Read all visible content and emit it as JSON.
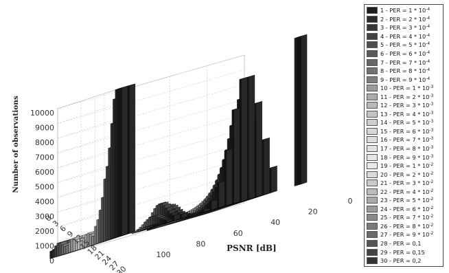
{
  "chart_data": {
    "type": "bar3d",
    "xlabel": "PSNR [dB]",
    "ylabel": "",
    "zlabel": "Number of observations",
    "x_ticks": [
      "0",
      "20",
      "40",
      "60",
      "80",
      "100"
    ],
    "y_ticks": [
      "0",
      "3",
      "6",
      "9",
      "12",
      "15",
      "18",
      "21",
      "24",
      "27",
      "30"
    ],
    "z_ticks": [
      "0",
      "1000",
      "2000",
      "3000",
      "4000",
      "5000",
      "6000",
      "7000",
      "8000",
      "9000",
      "10000"
    ],
    "xlim": [
      0,
      100
    ],
    "ylim": [
      0,
      30
    ],
    "zlim": [
      0,
      10000
    ],
    "grid": true,
    "legend_position": "right",
    "series": [
      {
        "name": "1 - PER = 1 * 10",
        "exp": "-4",
        "color": "#1e1e1e"
      },
      {
        "name": "2 - PER = 2 * 10",
        "exp": "-4",
        "color": "#2a2a2a"
      },
      {
        "name": "3 - PER = 3 * 10",
        "exp": "-4",
        "color": "#363636"
      },
      {
        "name": "4 - PER = 4 * 10",
        "exp": "-4",
        "color": "#424242"
      },
      {
        "name": "5 - PER = 5 * 10",
        "exp": "-4",
        "color": "#4e4e4e"
      },
      {
        "name": "6 - PER = 6 * 10",
        "exp": "-4",
        "color": "#5a5a5a"
      },
      {
        "name": "7 - PER = 7 * 10",
        "exp": "-4",
        "color": "#666666"
      },
      {
        "name": "8 - PER = 8 * 10",
        "exp": "-4",
        "color": "#727272"
      },
      {
        "name": "9 - PER = 9 * 10",
        "exp": "-4",
        "color": "#7e7e7e"
      },
      {
        "name": "10 - PER = 1 * 10",
        "exp": "-3",
        "color": "#9a9a9a"
      },
      {
        "name": "11 - PER = 2 * 10",
        "exp": "-3",
        "color": "#ababab"
      },
      {
        "name": "12 - PER = 3 * 10",
        "exp": "-3",
        "color": "#b8b8b8"
      },
      {
        "name": "13 - PER = 4 * 10",
        "exp": "-3",
        "color": "#c4c4c4"
      },
      {
        "name": "14 - PER = 5 * 10",
        "exp": "-3",
        "color": "#cecece"
      },
      {
        "name": "15 - PER = 6 * 10",
        "exp": "-3",
        "color": "#d6d6d6"
      },
      {
        "name": "16 - PER = 7 * 10",
        "exp": "-3",
        "color": "#dcdcdc"
      },
      {
        "name": "17 - PER = 8 * 10",
        "exp": "-3",
        "color": "#e2e2e2"
      },
      {
        "name": "18 - PER = 9 * 10",
        "exp": "-3",
        "color": "#e6e6e6"
      },
      {
        "name": "19 - PER = 1 * 10",
        "exp": "-2",
        "color": "#eaeaea"
      },
      {
        "name": "20 - PER = 2 * 10",
        "exp": "-2",
        "color": "#dadada"
      },
      {
        "name": "21 - PER = 3 * 10",
        "exp": "-2",
        "color": "#cacaca"
      },
      {
        "name": "22 - PER = 4 * 10",
        "exp": "-2",
        "color": "#bababa"
      },
      {
        "name": "23 - PER = 5 * 10",
        "exp": "-2",
        "color": "#aaaaaa"
      },
      {
        "name": "24 - PER = 6 * 10",
        "exp": "-2",
        "color": "#9a9a9a"
      },
      {
        "name": "25 - PER = 7 * 10",
        "exp": "-2",
        "color": "#8a8a8a"
      },
      {
        "name": "26 - PER = 8 * 10",
        "exp": "-2",
        "color": "#7a7a7a"
      },
      {
        "name": "27 - PER = 9 * 10",
        "exp": "-2",
        "color": "#6a6a6a"
      },
      {
        "name": "28 - PER = 0,1",
        "exp": "",
        "color": "#555555"
      },
      {
        "name": "29 - PER = 0,15",
        "exp": "",
        "color": "#444444"
      },
      {
        "name": "30 - PER = 0,2",
        "exp": "",
        "color": "#333333"
      }
    ]
  }
}
